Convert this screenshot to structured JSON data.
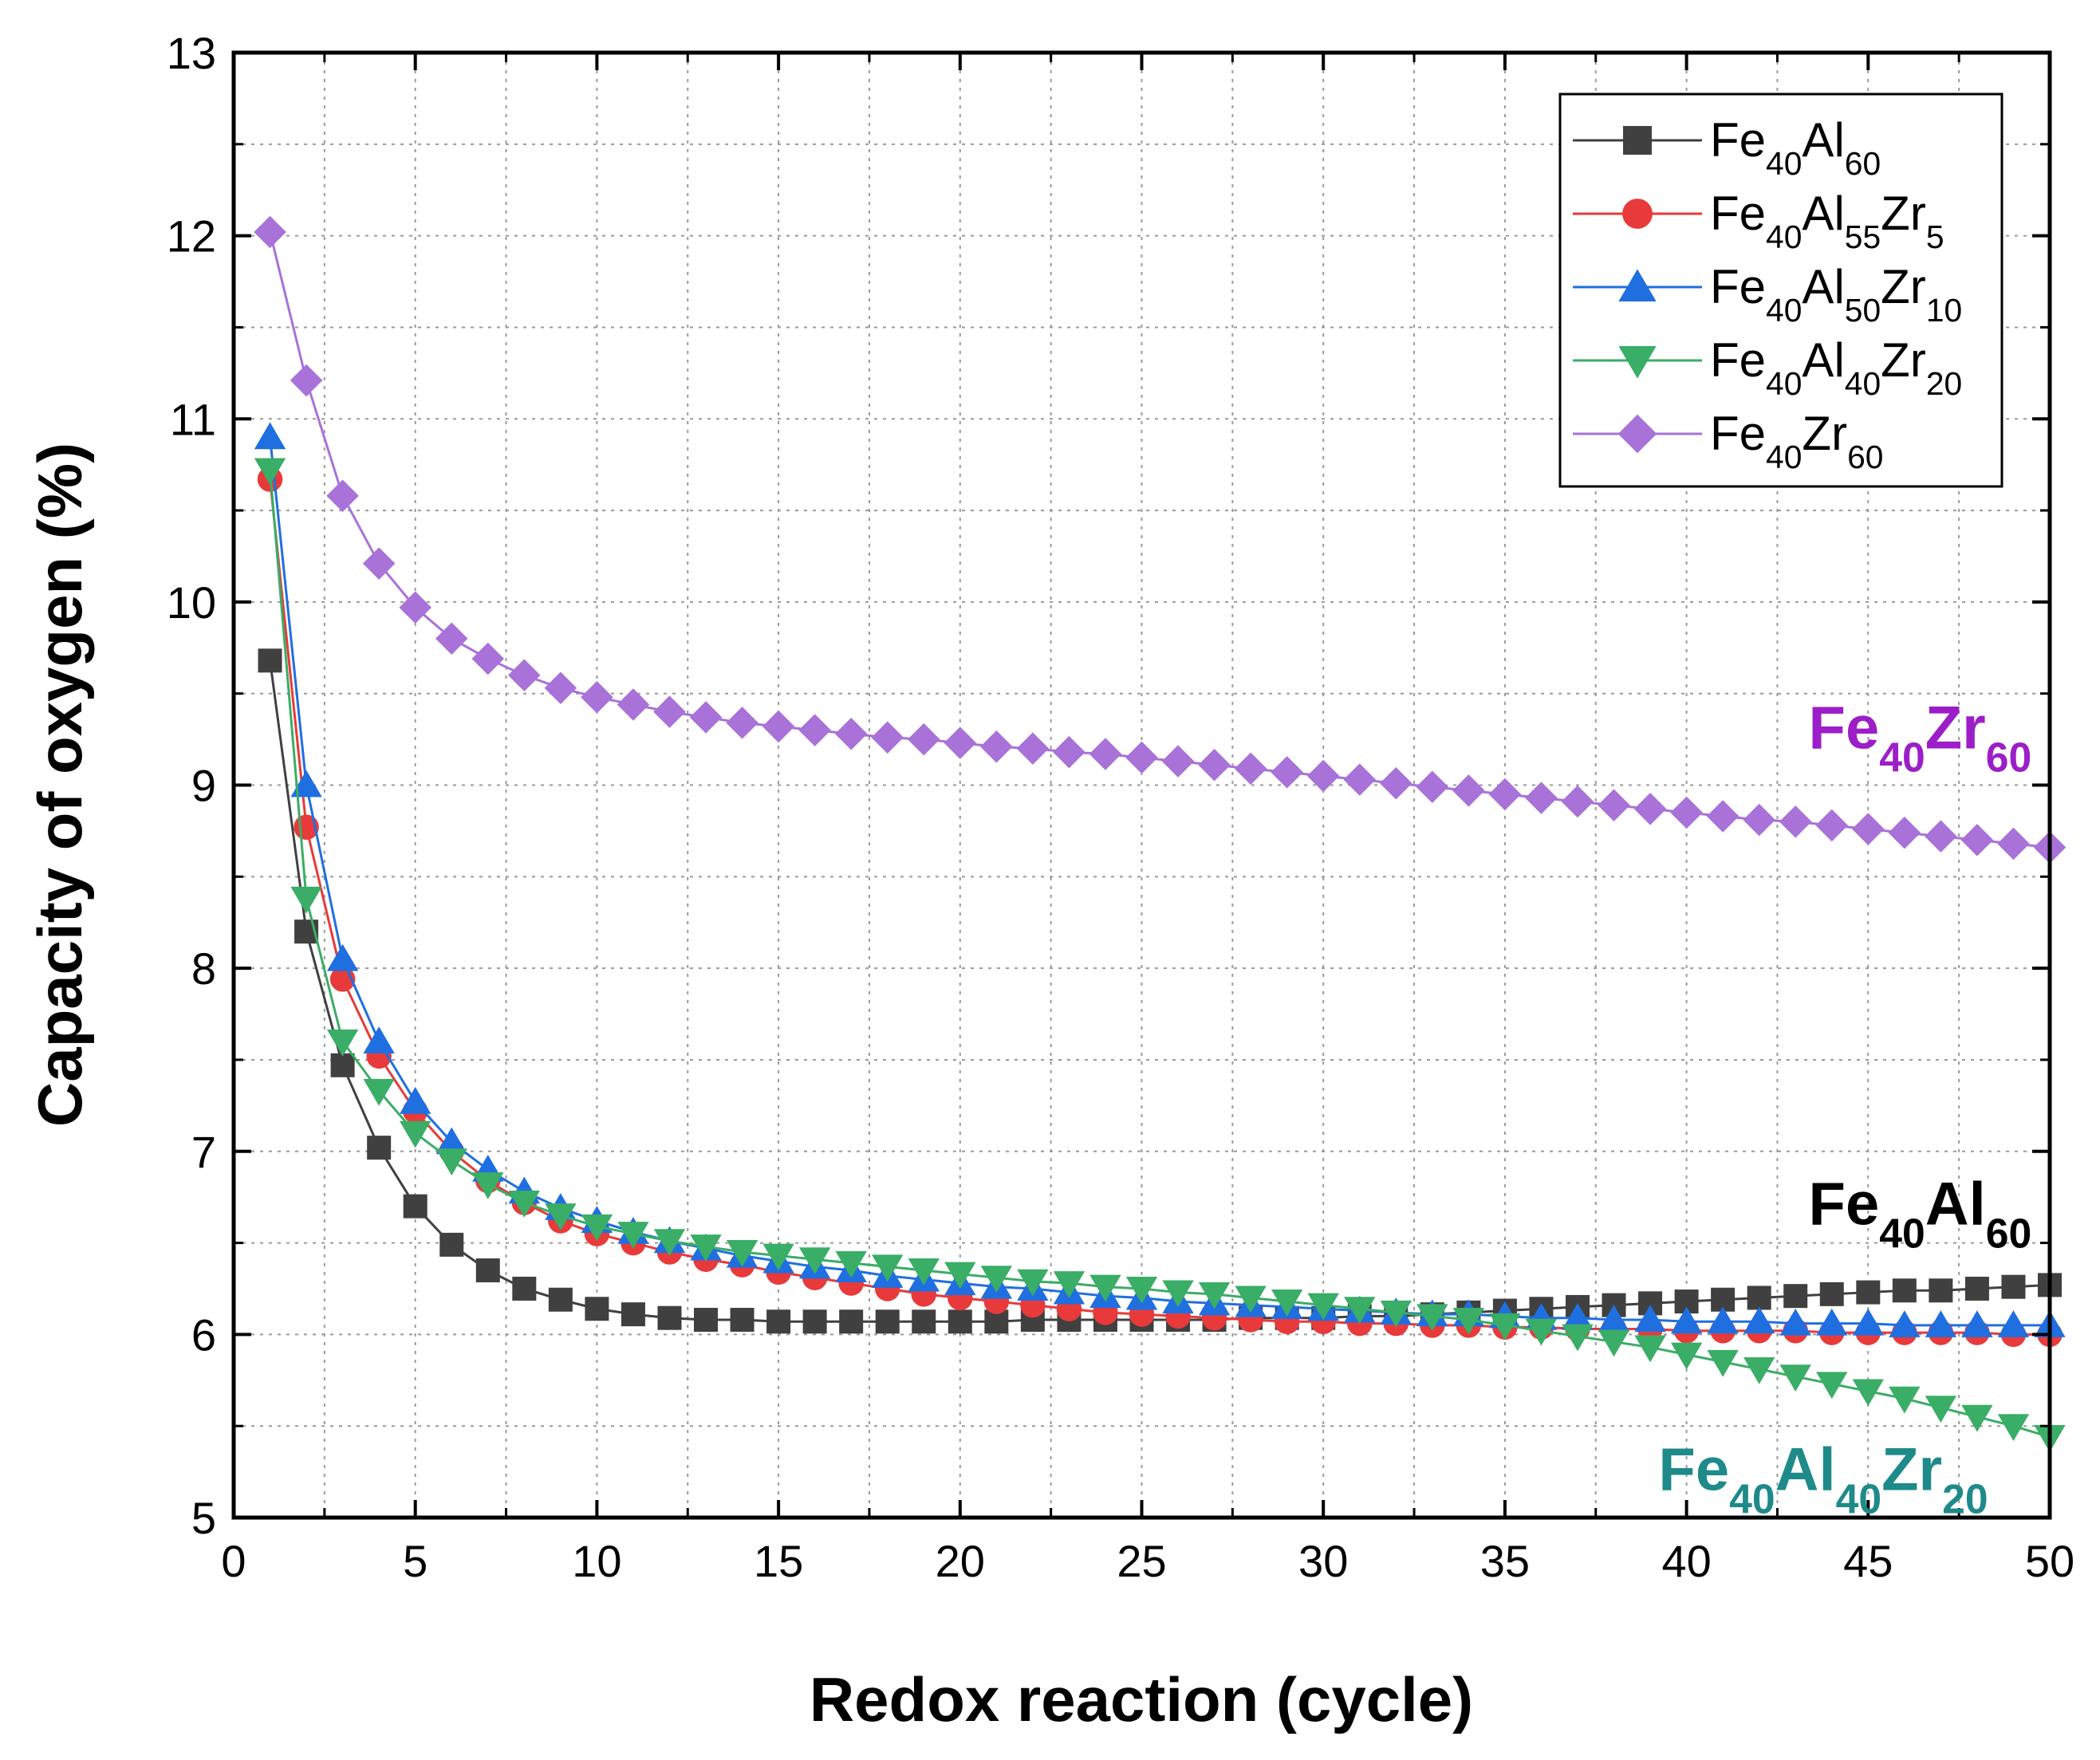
{
  "chart_data": {
    "type": "line",
    "xlabel": "Redox reaction (cycle)",
    "ylabel": "Capacity of oxygen (%)",
    "xlim": [
      0,
      50
    ],
    "ylim": [
      5,
      13
    ],
    "xticks": [
      "0",
      "5",
      "10",
      "15",
      "20",
      "25",
      "30",
      "35",
      "40",
      "45",
      "50"
    ],
    "yticks": [
      "5",
      "6",
      "7",
      "8",
      "9",
      "10",
      "11",
      "12",
      "13"
    ],
    "grid": true,
    "legend_position": "top-right",
    "series": [
      {
        "name": "Fe40Al60",
        "label_parts": [
          [
            "Fe",
            ""
          ],
          [
            "40",
            "sub"
          ],
          [
            "Al",
            ""
          ],
          [
            "60",
            "sub"
          ]
        ],
        "color": "#404040",
        "marker": "square",
        "x": [
          1,
          2,
          3,
          4,
          5,
          6,
          7,
          8,
          9,
          10,
          11,
          12,
          13,
          14,
          15,
          16,
          17,
          18,
          19,
          20,
          21,
          22,
          23,
          24,
          25,
          26,
          27,
          28,
          29,
          30,
          31,
          32,
          33,
          34,
          35,
          36,
          37,
          38,
          39,
          40,
          41,
          42,
          43,
          44,
          45,
          46,
          47,
          48,
          49,
          50
        ],
        "y": [
          9.68,
          8.2,
          7.47,
          7.02,
          6.7,
          6.49,
          6.35,
          6.25,
          6.19,
          6.14,
          6.11,
          6.09,
          6.08,
          6.08,
          6.07,
          6.07,
          6.07,
          6.07,
          6.07,
          6.07,
          6.07,
          6.08,
          6.08,
          6.08,
          6.08,
          6.08,
          6.08,
          6.09,
          6.09,
          6.09,
          6.1,
          6.1,
          6.11,
          6.12,
          6.13,
          6.14,
          6.15,
          6.16,
          6.17,
          6.18,
          6.19,
          6.2,
          6.21,
          6.22,
          6.23,
          6.24,
          6.24,
          6.25,
          6.26,
          6.27
        ]
      },
      {
        "name": "Fe40Al55Zr5",
        "label_parts": [
          [
            "Fe",
            ""
          ],
          [
            "40",
            "sub"
          ],
          [
            "Al",
            ""
          ],
          [
            "55",
            "sub"
          ],
          [
            "Zr",
            ""
          ],
          [
            "5",
            "sub"
          ]
        ],
        "color": "#e83a3a",
        "marker": "circle",
        "x": [
          1,
          2,
          3,
          4,
          5,
          6,
          7,
          8,
          9,
          10,
          11,
          12,
          13,
          14,
          15,
          16,
          17,
          18,
          19,
          20,
          21,
          22,
          23,
          24,
          25,
          26,
          27,
          28,
          29,
          30,
          31,
          32,
          33,
          34,
          35,
          36,
          37,
          38,
          39,
          40,
          41,
          42,
          43,
          44,
          45,
          46,
          47,
          48,
          49,
          50
        ],
        "y": [
          10.67,
          8.77,
          7.94,
          7.52,
          7.22,
          7.0,
          6.84,
          6.72,
          6.62,
          6.55,
          6.5,
          6.45,
          6.41,
          6.38,
          6.34,
          6.31,
          6.28,
          6.25,
          6.22,
          6.2,
          6.18,
          6.16,
          6.14,
          6.12,
          6.11,
          6.1,
          6.09,
          6.08,
          6.07,
          6.07,
          6.06,
          6.06,
          6.05,
          6.05,
          6.04,
          6.04,
          6.03,
          6.03,
          6.03,
          6.02,
          6.02,
          6.02,
          6.02,
          6.01,
          6.01,
          6.01,
          6.01,
          6.01,
          6.0,
          6.0
        ]
      },
      {
        "name": "Fe40Al50Zr10",
        "label_parts": [
          [
            "Fe",
            ""
          ],
          [
            "40",
            "sub"
          ],
          [
            "Al",
            ""
          ],
          [
            "50",
            "sub"
          ],
          [
            "Zr",
            ""
          ],
          [
            "10",
            "sub"
          ]
        ],
        "color": "#1f6fe0",
        "marker": "triangle-up",
        "x": [
          1,
          2,
          3,
          4,
          5,
          6,
          7,
          8,
          9,
          10,
          11,
          12,
          13,
          14,
          15,
          16,
          17,
          18,
          19,
          20,
          21,
          22,
          23,
          24,
          25,
          26,
          27,
          28,
          29,
          30,
          31,
          32,
          33,
          34,
          35,
          36,
          37,
          38,
          39,
          40,
          41,
          42,
          43,
          44,
          45,
          46,
          47,
          48,
          49,
          50
        ],
        "y": [
          10.9,
          9.0,
          8.05,
          7.6,
          7.27,
          7.05,
          6.9,
          6.78,
          6.69,
          6.62,
          6.56,
          6.51,
          6.47,
          6.43,
          6.4,
          6.37,
          6.35,
          6.32,
          6.3,
          6.28,
          6.26,
          6.25,
          6.23,
          6.21,
          6.2,
          6.18,
          6.17,
          6.16,
          6.15,
          6.14,
          6.13,
          6.12,
          6.11,
          6.11,
          6.1,
          6.09,
          6.09,
          6.08,
          6.08,
          6.07,
          6.07,
          6.07,
          6.06,
          6.06,
          6.06,
          6.05,
          6.05,
          6.05,
          6.05,
          6.05
        ]
      },
      {
        "name": "Fe40Al40Zr20",
        "label_parts": [
          [
            "Fe",
            ""
          ],
          [
            "40",
            "sub"
          ],
          [
            "Al",
            ""
          ],
          [
            "40",
            "sub"
          ],
          [
            "Zr",
            ""
          ],
          [
            "20",
            "sub"
          ]
        ],
        "color": "#3aad66",
        "marker": "triangle-down",
        "x": [
          1,
          2,
          3,
          4,
          5,
          6,
          7,
          8,
          9,
          10,
          11,
          12,
          13,
          14,
          15,
          16,
          17,
          18,
          19,
          20,
          21,
          22,
          23,
          24,
          25,
          26,
          27,
          28,
          29,
          30,
          31,
          32,
          33,
          34,
          35,
          36,
          37,
          38,
          39,
          40,
          41,
          42,
          43,
          44,
          45,
          46,
          47,
          48,
          49,
          50
        ],
        "y": [
          10.72,
          8.38,
          7.6,
          7.33,
          7.1,
          6.95,
          6.82,
          6.72,
          6.65,
          6.59,
          6.55,
          6.51,
          6.48,
          6.45,
          6.43,
          6.41,
          6.39,
          6.37,
          6.35,
          6.33,
          6.31,
          6.29,
          6.28,
          6.26,
          6.25,
          6.23,
          6.22,
          6.2,
          6.18,
          6.16,
          6.14,
          6.12,
          6.1,
          6.08,
          6.05,
          6.02,
          5.99,
          5.96,
          5.93,
          5.89,
          5.85,
          5.81,
          5.77,
          5.73,
          5.69,
          5.65,
          5.6,
          5.55,
          5.5,
          5.44
        ]
      },
      {
        "name": "Fe40Zr60",
        "label_parts": [
          [
            "Fe",
            ""
          ],
          [
            "40",
            "sub"
          ],
          [
            "Zr",
            ""
          ],
          [
            "60",
            "sub"
          ]
        ],
        "color": "#a872d8",
        "marker": "diamond",
        "x": [
          1,
          2,
          3,
          4,
          5,
          6,
          7,
          8,
          9,
          10,
          11,
          12,
          13,
          14,
          15,
          16,
          17,
          18,
          19,
          20,
          21,
          22,
          23,
          24,
          25,
          26,
          27,
          28,
          29,
          30,
          31,
          32,
          33,
          34,
          35,
          36,
          37,
          38,
          39,
          40,
          41,
          42,
          43,
          44,
          45,
          46,
          47,
          48,
          49,
          50
        ],
        "y": [
          12.02,
          11.21,
          10.58,
          10.21,
          9.97,
          9.8,
          9.69,
          9.6,
          9.53,
          9.48,
          9.44,
          9.4,
          9.37,
          9.34,
          9.32,
          9.3,
          9.28,
          9.26,
          9.25,
          9.23,
          9.21,
          9.2,
          9.18,
          9.17,
          9.15,
          9.13,
          9.11,
          9.09,
          9.07,
          9.05,
          9.03,
          9.01,
          8.99,
          8.97,
          8.95,
          8.93,
          8.91,
          8.89,
          8.87,
          8.85,
          8.83,
          8.81,
          8.8,
          8.78,
          8.76,
          8.74,
          8.72,
          8.7,
          8.68,
          8.66
        ]
      }
    ],
    "annotations": [
      {
        "name": "annotation-fe40zr60",
        "text": "Fe40Zr60",
        "parts": [
          [
            "Fe",
            ""
          ],
          [
            "40",
            "sub"
          ],
          [
            "Zr",
            ""
          ],
          [
            "60",
            "sub"
          ]
        ],
        "color": "#9c1ec8",
        "anchor_x": 49.5,
        "anchor_y": 9.2
      },
      {
        "name": "annotation-fe40al60",
        "text": "Fe40Al60",
        "parts": [
          [
            "Fe",
            ""
          ],
          [
            "40",
            "sub"
          ],
          [
            "Al",
            ""
          ],
          [
            "60",
            "sub"
          ]
        ],
        "color": "#000000",
        "anchor_x": 49.5,
        "anchor_y": 6.6
      },
      {
        "name": "annotation-fe40al40zr20",
        "text": "Fe40Al40Zr20",
        "parts": [
          [
            "Fe",
            ""
          ],
          [
            "40",
            "sub"
          ],
          [
            "Al",
            ""
          ],
          [
            "40",
            "sub"
          ],
          [
            "Zr",
            ""
          ],
          [
            "20",
            "sub"
          ]
        ],
        "color": "#1e8a8a",
        "anchor_x": 48.3,
        "anchor_y": 5.15
      }
    ]
  }
}
